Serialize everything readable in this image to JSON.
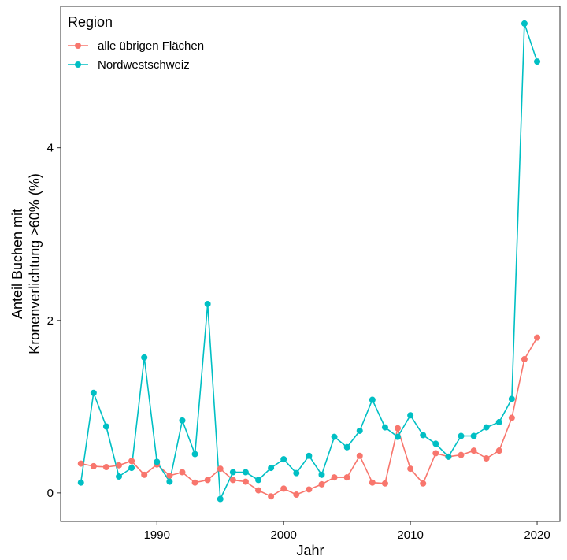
{
  "chart_data": {
    "type": "line",
    "title": "",
    "xlabel": "Jahr",
    "ylabel_line1": "Anteil Buchen mit",
    "ylabel_line2": "Kronenverlichtung >60% (%)",
    "xlim": [
      1982.4,
      2021.8
    ],
    "ylim": [
      -0.33,
      5.64
    ],
    "xticks": [
      1990,
      2000,
      2010,
      2020
    ],
    "yticks": [
      0,
      2,
      4
    ],
    "grid": false,
    "legend": {
      "title": "Region",
      "position": "top-left"
    },
    "x": [
      1984,
      1985,
      1986,
      1987,
      1988,
      1989,
      1990,
      1991,
      1992,
      1993,
      1994,
      1995,
      1996,
      1997,
      1998,
      1999,
      2000,
      2001,
      2002,
      2003,
      2004,
      2005,
      2006,
      2007,
      2008,
      2009,
      2010,
      2011,
      2012,
      2013,
      2014,
      2015,
      2016,
      2017,
      2018,
      2019,
      2020
    ],
    "series": [
      {
        "name": "alle übrigen Flächen",
        "color": "#F8766D",
        "values": [
          0.34,
          0.31,
          0.3,
          0.32,
          0.37,
          0.21,
          0.33,
          0.2,
          0.24,
          0.12,
          0.15,
          0.28,
          0.15,
          0.13,
          0.03,
          -0.04,
          0.05,
          -0.02,
          0.04,
          0.1,
          0.18,
          0.18,
          0.43,
          0.12,
          0.11,
          0.75,
          0.28,
          0.11,
          0.46,
          0.42,
          0.44,
          0.49,
          0.4,
          0.49,
          0.87,
          1.55,
          1.8
        ]
      },
      {
        "name": "Nordwestschweiz",
        "color": "#00BFC4",
        "values": [
          0.12,
          1.16,
          0.77,
          0.19,
          0.29,
          1.57,
          0.36,
          0.13,
          0.84,
          0.45,
          2.19,
          -0.07,
          0.24,
          0.24,
          0.15,
          0.29,
          0.39,
          0.23,
          0.43,
          0.21,
          0.65,
          0.53,
          0.72,
          1.08,
          0.76,
          0.65,
          0.9,
          0.67,
          0.57,
          0.42,
          0.66,
          0.66,
          0.76,
          0.82,
          1.09,
          5.44,
          5.0
        ]
      }
    ]
  }
}
